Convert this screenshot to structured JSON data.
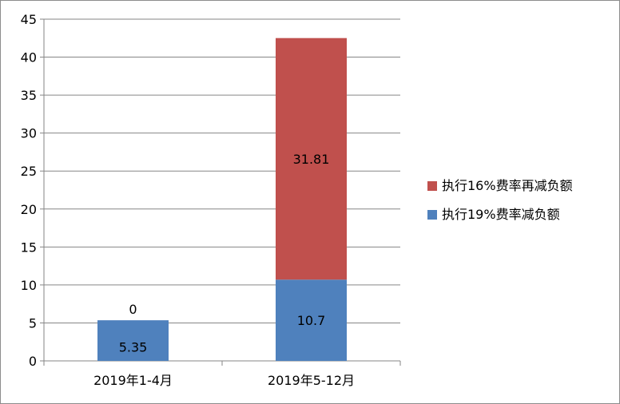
{
  "chart_data": {
    "type": "bar",
    "stacked": true,
    "categories": [
      "2019年1-4月",
      "2019年5-12月"
    ],
    "series": [
      {
        "name": "执行19%费率减负额",
        "values": [
          5.35,
          10.7
        ],
        "color": "#4f81bd"
      },
      {
        "name": "执行16%费率再减负额",
        "values": [
          0,
          31.81
        ],
        "color": "#c0504d"
      }
    ],
    "data_labels": [
      [
        "5.35",
        "10.7"
      ],
      [
        "0",
        "31.81"
      ]
    ],
    "ylim": [
      0,
      45
    ],
    "yticks": [
      "0",
      "5",
      "10",
      "15",
      "20",
      "25",
      "30",
      "35",
      "40",
      "45"
    ],
    "grid": true,
    "legend_position": "right",
    "legend_order": [
      1,
      0
    ],
    "title": "",
    "xlabel": "",
    "ylabel": ""
  }
}
